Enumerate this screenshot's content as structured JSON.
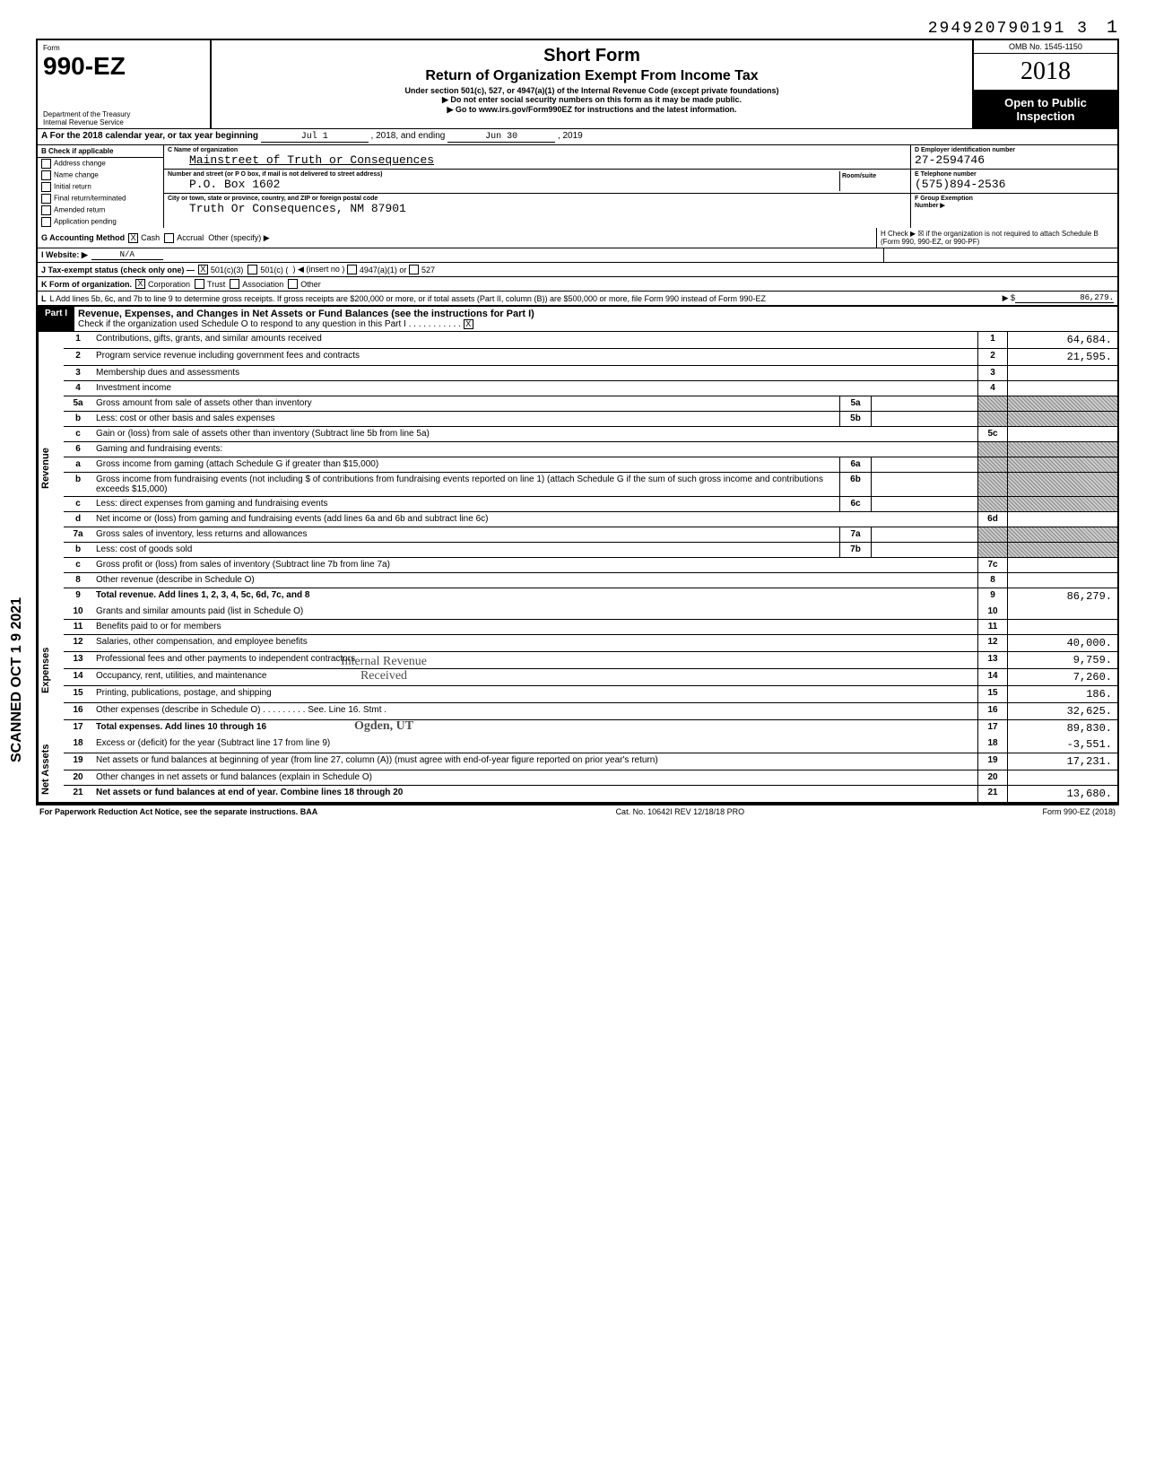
{
  "top_number": "294920790191 3",
  "page_num": "1",
  "vertical_stamp": "SCANNED OCT 1 9 2021",
  "header": {
    "form_label": "Form",
    "form_number": "990-EZ",
    "dept1": "Department of the Treasury",
    "dept2": "Internal Revenue Service",
    "title1": "Short Form",
    "title2": "Return of Organization Exempt From Income Tax",
    "subtitle": "Under section 501(c), 527, or 4947(a)(1) of the Internal Revenue Code (except private foundations)",
    "note1": "▶ Do not enter social security numbers on this form as it may be made public.",
    "note2": "▶ Go to www.irs.gov/Form990EZ for instructions and the latest information.",
    "omb": "OMB No. 1545-1150",
    "year": "2018",
    "open_public1": "Open to Public",
    "open_public2": "Inspection"
  },
  "line_a": {
    "text": "A For the 2018 calendar year, or tax year beginning",
    "begin": "Jul 1",
    "mid": ", 2018, and ending",
    "end": "Jun 30",
    "end_year": ", 2019"
  },
  "col_b": {
    "header": "B Check if applicable",
    "items": [
      "Address change",
      "Name change",
      "Initial return",
      "Final return/terminated",
      "Amended return",
      "Application pending"
    ]
  },
  "col_c": {
    "name_lbl": "C Name of organization",
    "name_val": "Mainstreet of Truth or Consequences",
    "addr_lbl": "Number and street (or P O box, if mail is not delivered to street address)",
    "addr_val": "P.O. Box 1602",
    "city_lbl": "City or town, state or province, country, and ZIP or foreign postal code",
    "city_val": "Truth Or Consequences, NM 87901",
    "room_lbl": "Room/suite"
  },
  "col_d": {
    "ein_lbl": "D Employer identification number",
    "ein_val": "27-2594746",
    "tel_lbl": "E Telephone number",
    "tel_val": "(575)894-2536",
    "grp_lbl": "F Group Exemption",
    "grp_lbl2": "Number ▶"
  },
  "line_g": {
    "label": "G Accounting Method",
    "opt1": "Cash",
    "opt2": "Accrual",
    "opt3": "Other (specify) ▶"
  },
  "line_h": {
    "text": "H Check ▶ ☒ if the organization is not required to attach Schedule B (Form 990, 990-EZ, or 990-PF)"
  },
  "line_i": {
    "label": "I Website: ▶",
    "val": "N/A"
  },
  "line_j": {
    "label": "J Tax-exempt status (check only one) —",
    "opt1": "501(c)(3)",
    "opt2": "501(c) (",
    "opt2b": ") ◀ (insert no )",
    "opt3": "4947(a)(1) or",
    "opt4": "527"
  },
  "line_k": {
    "label": "K Form of organization.",
    "opt1": "Corporation",
    "opt2": "Trust",
    "opt3": "Association",
    "opt4": "Other"
  },
  "line_l": {
    "text": "L Add lines 5b, 6c, and 7b to line 9 to determine gross receipts. If gross receipts are $200,000 or more, or if total assets (Part II, column (B)) are $500,000 or more, file Form 990 instead of Form 990-EZ",
    "arrow": "▶ $",
    "val": "86,279."
  },
  "part1": {
    "label": "Part I",
    "title": "Revenue, Expenses, and Changes in Net Assets or Fund Balances (see the instructions for Part I)",
    "check_text": "Check if the organization used Schedule O to respond to any question in this Part I"
  },
  "sections": {
    "revenue": "Revenue",
    "expenses": "Expenses",
    "net_assets": "Net Assets"
  },
  "lines": [
    {
      "n": "1",
      "desc": "Contributions, gifts, grants, and similar amounts received",
      "col": "1",
      "val": "64,684."
    },
    {
      "n": "2",
      "desc": "Program service revenue including government fees and contracts",
      "col": "2",
      "val": "21,595."
    },
    {
      "n": "3",
      "desc": "Membership dues and assessments",
      "col": "3",
      "val": ""
    },
    {
      "n": "4",
      "desc": "Investment income",
      "col": "4",
      "val": ""
    },
    {
      "n": "5a",
      "desc": "Gross amount from sale of assets other than inventory",
      "sub": "5a",
      "shaded": true
    },
    {
      "n": "b",
      "desc": "Less: cost or other basis and sales expenses",
      "sub": "5b",
      "shaded": true
    },
    {
      "n": "c",
      "desc": "Gain or (loss) from sale of assets other than inventory (Subtract line 5b from line 5a)",
      "col": "5c",
      "val": ""
    },
    {
      "n": "6",
      "desc": "Gaming and fundraising events:",
      "shaded": true
    },
    {
      "n": "a",
      "desc": "Gross income from gaming (attach Schedule G if greater than $15,000)",
      "sub": "6a",
      "shaded": true
    },
    {
      "n": "b",
      "desc": "Gross income from fundraising events (not including  $                    of contributions from fundraising events reported on line 1) (attach Schedule G if the sum of such gross income and contributions exceeds $15,000)",
      "sub": "6b",
      "shaded": true
    },
    {
      "n": "c",
      "desc": "Less: direct expenses from gaming and fundraising events",
      "sub": "6c",
      "shaded": true
    },
    {
      "n": "d",
      "desc": "Net income or (loss) from gaming and fundraising events (add lines 6a and 6b and subtract line 6c)",
      "col": "6d",
      "val": ""
    },
    {
      "n": "7a",
      "desc": "Gross sales of inventory, less returns and allowances",
      "sub": "7a",
      "shaded": true
    },
    {
      "n": "b",
      "desc": "Less: cost of goods sold",
      "sub": "7b",
      "shaded": true
    },
    {
      "n": "c",
      "desc": "Gross profit or (loss) from sales of inventory (Subtract line 7b from line 7a)",
      "col": "7c",
      "val": ""
    },
    {
      "n": "8",
      "desc": "Other revenue (describe in Schedule O)",
      "col": "8",
      "val": ""
    },
    {
      "n": "9",
      "desc": "Total revenue. Add lines 1, 2, 3, 4, 5c, 6d, 7c, and 8",
      "col": "9",
      "val": "86,279.",
      "bold": true
    }
  ],
  "exp_lines": [
    {
      "n": "10",
      "desc": "Grants and similar amounts paid (list in Schedule O)",
      "col": "10",
      "val": ""
    },
    {
      "n": "11",
      "desc": "Benefits paid to or for members",
      "col": "11",
      "val": ""
    },
    {
      "n": "12",
      "desc": "Salaries, other compensation, and employee benefits",
      "col": "12",
      "val": "40,000."
    },
    {
      "n": "13",
      "desc": "Professional fees and other payments to independent contractors",
      "col": "13",
      "val": "9,759."
    },
    {
      "n": "14",
      "desc": "Occupancy, rent, utilities, and maintenance",
      "col": "14",
      "val": "7,260."
    },
    {
      "n": "15",
      "desc": "Printing, publications, postage, and shipping",
      "col": "15",
      "val": "186."
    },
    {
      "n": "16",
      "desc": "Other expenses (describe in Schedule O) . . . . . . . . . See. Line 16. Stmt .",
      "col": "16",
      "val": "32,625."
    },
    {
      "n": "17",
      "desc": "Total expenses. Add lines 10 through 16",
      "col": "17",
      "val": "89,830.",
      "bold": true
    }
  ],
  "na_lines": [
    {
      "n": "18",
      "desc": "Excess or (deficit) for the year (Subtract line 17 from line 9)",
      "col": "18",
      "val": "-3,551."
    },
    {
      "n": "19",
      "desc": "Net assets or fund balances at beginning of year (from line 27, column (A)) (must agree with end-of-year figure reported on prior year's return)",
      "col": "19",
      "val": "17,231."
    },
    {
      "n": "20",
      "desc": "Other changes in net assets or fund balances (explain in Schedule O)",
      "col": "20",
      "val": ""
    },
    {
      "n": "21",
      "desc": "Net assets or fund balances at end of year. Combine lines 18 through 20",
      "col": "21",
      "val": "13,680.",
      "bold": true
    }
  ],
  "stamp": {
    "l1": "Internal Revenue",
    "l2": "Received",
    "l3": "Ogden, UT"
  },
  "footer": {
    "left": "For Paperwork Reduction Act Notice, see the separate instructions. BAA",
    "mid": "Cat. No. 10642I  REV 12/18/18 PRO",
    "right": "Form 990-EZ (2018)"
  }
}
